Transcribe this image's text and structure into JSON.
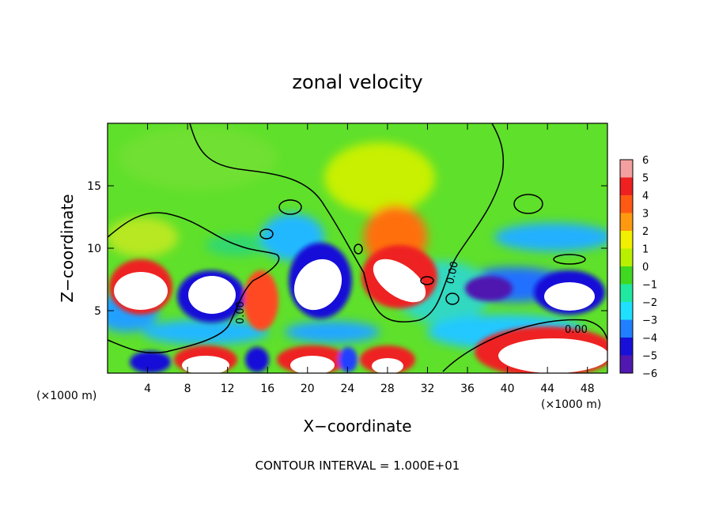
{
  "chart_data": {
    "type": "heatmap",
    "title": "zonal velocity",
    "xlabel": "X−coordinate",
    "ylabel": "Z−coordinate",
    "x_unit_left": "(×1000 m)",
    "x_unit_right": "(×1000 m)",
    "xlim": [
      0,
      50
    ],
    "ylim": [
      0,
      20
    ],
    "x_ticks": [
      4,
      8,
      12,
      16,
      20,
      24,
      28,
      32,
      36,
      40,
      44,
      48
    ],
    "y_ticks": [
      5,
      10,
      15
    ],
    "colorbar": {
      "range": [
        -6,
        6
      ],
      "labels": [
        "6",
        "5",
        "4",
        "3",
        "2",
        "1",
        "0",
        "−1",
        "−2",
        "−3",
        "−4",
        "−5",
        "−6"
      ],
      "colors": [
        "#f4a0a0",
        "#ee2020",
        "#ff5a14",
        "#ff9a10",
        "#f0f000",
        "#b8f000",
        "#40d820",
        "#20e8a0",
        "#20e0ff",
        "#2080ff",
        "#1810d8",
        "#5018b0"
      ],
      "out_of_range_color": "#ffffff"
    },
    "contour_labels": [
      "0.00",
      "0.00",
      "0.00"
    ],
    "footer": "CONTOUR INTERVAL = 1.000E+01",
    "grid": false,
    "legend_position": "right"
  }
}
